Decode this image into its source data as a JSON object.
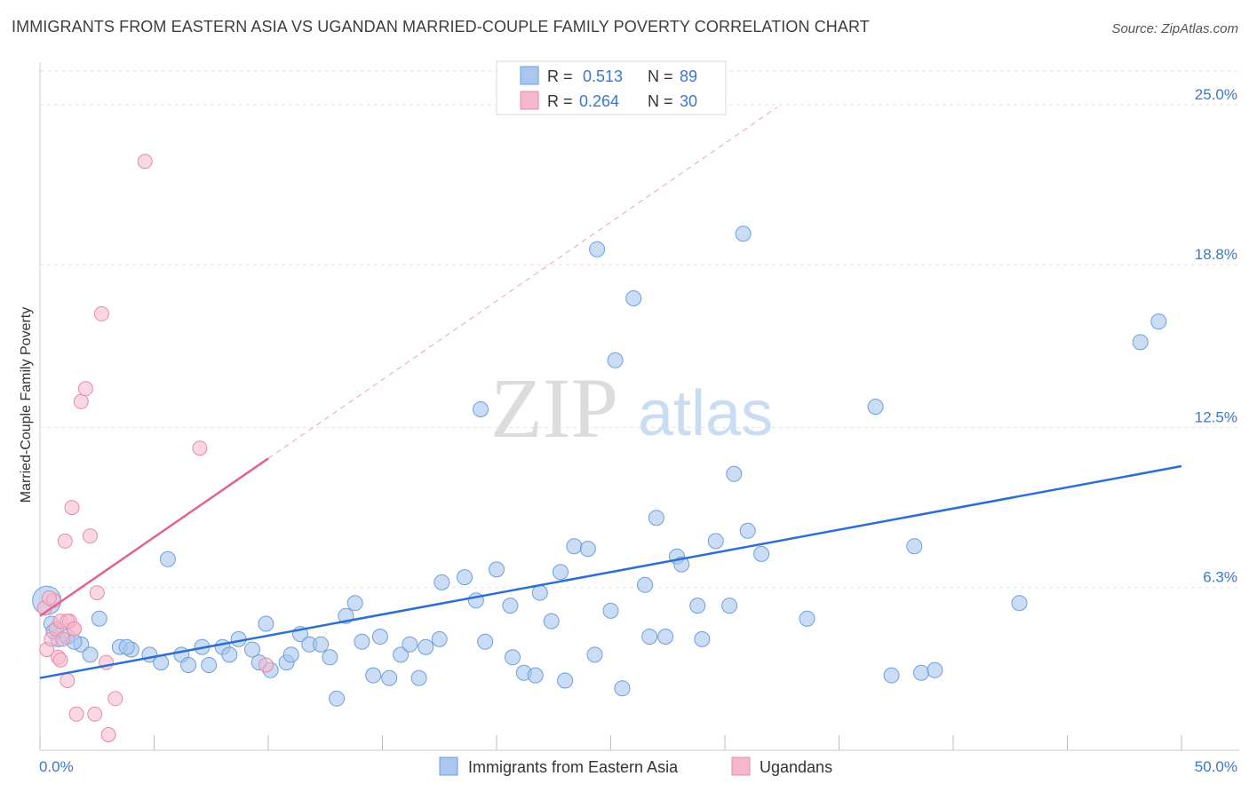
{
  "title": "IMMIGRANTS FROM EASTERN ASIA VS UGANDAN MARRIED-COUPLE FAMILY POVERTY CORRELATION CHART",
  "source": "Source: ZipAtlas.com",
  "colors": {
    "blue_fill": "#a9c7ef",
    "blue_stroke": "#6f9fde",
    "blue_line": "#2a6fd1",
    "pink_fill": "#f5b8cb",
    "pink_stroke": "#e98aa8",
    "pink_line": "#e0648e",
    "axis_text_blue": "#3b78c9",
    "grid": "#e2e2e2"
  },
  "legend": {
    "row1": {
      "r_label": "R =",
      "r_value": "0.513",
      "n_label": "N =",
      "n_value": "89"
    },
    "row2": {
      "r_label": "R =",
      "r_value": "0.264",
      "n_label": "N =",
      "n_value": "30"
    }
  },
  "watermark": {
    "zip": "ZIP",
    "atlas": "atlas"
  },
  "chart_data": {
    "type": "scatter",
    "xlabel": "",
    "ylabel": "Married-Couple Family Poverty",
    "xlim": [
      0,
      50
    ],
    "ylim": [
      0,
      26.3
    ],
    "x_tick_labels": [
      {
        "value": 0,
        "label": "0.0%"
      },
      {
        "value": 50,
        "label": "50.0%"
      }
    ],
    "y_tick_labels": [
      {
        "value": 6.3,
        "label": "6.3%"
      },
      {
        "value": 12.5,
        "label": "12.5%"
      },
      {
        "value": 18.8,
        "label": "18.8%"
      },
      {
        "value": 25.0,
        "label": "25.0%"
      }
    ],
    "legend_position": "bottom-center",
    "series": [
      {
        "name": "Immigrants from Eastern Asia",
        "color": "#a9c7ef",
        "r": 0.513,
        "n": 89,
        "trend": {
          "x": [
            0,
            50
          ],
          "y": [
            2.8,
            11.0
          ]
        },
        "points": [
          [
            0.3,
            5.8
          ],
          [
            0.5,
            4.9
          ],
          [
            0.8,
            4.3
          ],
          [
            1.2,
            4.4
          ],
          [
            1.8,
            4.1
          ],
          [
            2.2,
            3.7
          ],
          [
            2.6,
            5.1
          ],
          [
            3.5,
            4.0
          ],
          [
            4.0,
            3.9
          ],
          [
            4.8,
            3.7
          ],
          [
            5.3,
            3.4
          ],
          [
            5.6,
            7.4
          ],
          [
            6.2,
            3.7
          ],
          [
            6.5,
            3.3
          ],
          [
            7.1,
            4.0
          ],
          [
            7.4,
            3.3
          ],
          [
            8.0,
            4.0
          ],
          [
            8.3,
            3.7
          ],
          [
            8.7,
            4.3
          ],
          [
            9.3,
            3.9
          ],
          [
            9.6,
            3.4
          ],
          [
            10.1,
            3.1
          ],
          [
            10.8,
            3.4
          ],
          [
            9.9,
            4.9
          ],
          [
            11.0,
            3.7
          ],
          [
            11.4,
            4.5
          ],
          [
            11.8,
            4.1
          ],
          [
            12.3,
            4.1
          ],
          [
            12.7,
            3.6
          ],
          [
            13.0,
            2.0
          ],
          [
            13.4,
            5.2
          ],
          [
            13.8,
            5.7
          ],
          [
            14.1,
            4.2
          ],
          [
            14.6,
            2.9
          ],
          [
            14.9,
            4.4
          ],
          [
            15.3,
            2.8
          ],
          [
            15.8,
            3.7
          ],
          [
            16.2,
            4.1
          ],
          [
            16.6,
            2.8
          ],
          [
            16.9,
            4.0
          ],
          [
            17.5,
            4.3
          ],
          [
            17.6,
            6.5
          ],
          [
            18.6,
            6.7
          ],
          [
            19.1,
            5.8
          ],
          [
            19.3,
            13.2
          ],
          [
            19.5,
            4.2
          ],
          [
            20.0,
            7.0
          ],
          [
            20.6,
            5.6
          ],
          [
            20.7,
            3.6
          ],
          [
            21.2,
            3.0
          ],
          [
            21.7,
            2.9
          ],
          [
            21.9,
            6.1
          ],
          [
            22.4,
            5.0
          ],
          [
            22.8,
            6.9
          ],
          [
            23.0,
            2.7
          ],
          [
            23.4,
            7.9
          ],
          [
            24.0,
            7.8
          ],
          [
            24.4,
            19.4
          ],
          [
            24.3,
            3.7
          ],
          [
            25.2,
            15.1
          ],
          [
            25.0,
            5.4
          ],
          [
            25.5,
            2.4
          ],
          [
            26.0,
            17.5
          ],
          [
            26.5,
            6.4
          ],
          [
            26.7,
            4.4
          ],
          [
            27.0,
            9.0
          ],
          [
            27.4,
            4.4
          ],
          [
            27.9,
            7.5
          ],
          [
            28.1,
            7.2
          ],
          [
            28.8,
            5.6
          ],
          [
            29.0,
            4.3
          ],
          [
            29.6,
            8.1
          ],
          [
            30.2,
            5.6
          ],
          [
            30.4,
            10.7
          ],
          [
            30.8,
            20.0
          ],
          [
            31.0,
            8.5
          ],
          [
            31.6,
            7.6
          ],
          [
            33.6,
            5.1
          ],
          [
            36.6,
            13.3
          ],
          [
            37.3,
            2.9
          ],
          [
            38.3,
            7.9
          ],
          [
            38.6,
            3.0
          ],
          [
            39.2,
            3.1
          ],
          [
            42.9,
            5.7
          ],
          [
            48.2,
            15.8
          ],
          [
            49.0,
            16.6
          ],
          [
            0.6,
            4.6
          ],
          [
            1.5,
            4.2
          ],
          [
            3.8,
            4.0
          ]
        ]
      },
      {
        "name": "Ugandans",
        "color": "#f5b8cb",
        "r": 0.264,
        "n": 30,
        "trend": {
          "x": [
            0,
            10.0
          ],
          "y": [
            5.2,
            11.3
          ]
        },
        "points": [
          [
            0.2,
            5.5
          ],
          [
            0.3,
            3.9
          ],
          [
            0.5,
            4.3
          ],
          [
            0.6,
            5.8
          ],
          [
            0.7,
            4.7
          ],
          [
            0.8,
            3.6
          ],
          [
            0.9,
            5.0
          ],
          [
            1.0,
            4.3
          ],
          [
            1.1,
            8.1
          ],
          [
            1.2,
            2.7
          ],
          [
            1.3,
            5.0
          ],
          [
            1.4,
            9.4
          ],
          [
            1.5,
            4.7
          ],
          [
            1.6,
            1.4
          ],
          [
            1.8,
            13.5
          ],
          [
            2.0,
            14.0
          ],
          [
            2.2,
            8.3
          ],
          [
            2.4,
            1.4
          ],
          [
            2.5,
            6.1
          ],
          [
            2.7,
            16.9
          ],
          [
            2.9,
            3.4
          ],
          [
            3.0,
            0.6
          ],
          [
            3.3,
            2.0
          ],
          [
            4.6,
            22.8
          ],
          [
            7.0,
            11.7
          ],
          [
            9.9,
            3.3
          ],
          [
            0.4,
            5.9
          ],
          [
            0.9,
            3.5
          ],
          [
            1.2,
            5.0
          ],
          [
            1.5,
            4.7
          ]
        ]
      }
    ]
  }
}
